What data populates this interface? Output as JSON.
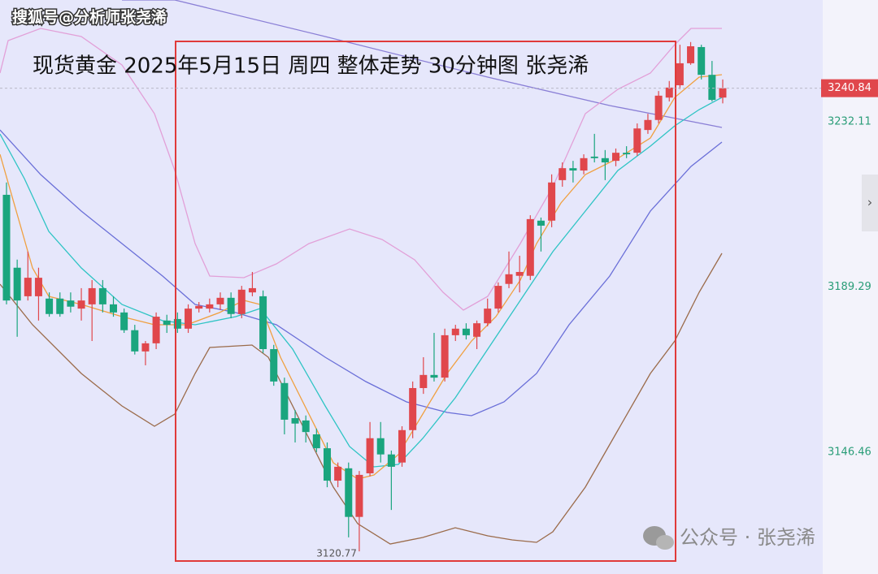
{
  "chart_data": {
    "type": "candlestick",
    "title": "现货黄金 2025年5月15日 周四 整体走势 30分钟图 张尧浠",
    "watermark": "搜狐号@分析师张尧浠",
    "footer": "公众号 · 张尧浠",
    "up_color": "#e0474c",
    "down_color": "#1aa57e",
    "ylim": [
      3114.9,
      3263.7
    ],
    "yticks": [
      3232.11,
      3189.29,
      3146.46
    ],
    "grid": false,
    "last_price": 3240.84,
    "open": [
      3213.2,
      3194.3,
      3186.9,
      3186.9,
      3186.3,
      3186.3,
      3185.8,
      3183.7,
      3184.8,
      3189.0,
      3184.8,
      3182.7,
      3178.1,
      3172.6,
      3174.7,
      3180.6,
      3181.0,
      3178.5,
      3183.7,
      3183.7,
      3184.8,
      3186.5,
      3182.3,
      3187.9,
      3186.9,
      3173.2,
      3164.4,
      3155.3,
      3154.7,
      3151.1,
      3147.5,
      3139.1,
      3142.3,
      3129.7,
      3141.0,
      3150.1,
      3145.9,
      3143.8,
      3152.2,
      3163.1,
      3166.5,
      3165.8,
      3176.8,
      3178.5,
      3176.4,
      3179.9,
      3183.7,
      3190.1,
      3192.2,
      3192.2,
      3206.5,
      3206.5,
      3217.0,
      3220.1,
      3219.5,
      3223.1,
      3222.7,
      3222.0,
      3224.1,
      3224.1,
      3230.0,
      3232.6,
      3238.4,
      3241.6,
      3247.3,
      3251.5,
      3244.3,
      3238.4
    ],
    "high": [
      3216.4,
      3196.4,
      3198.5,
      3194.3,
      3187.9,
      3187.9,
      3187.9,
      3189.0,
      3191.1,
      3191.1,
      3186.9,
      3183.7,
      3179.5,
      3175.3,
      3182.7,
      3182.1,
      3182.7,
      3184.8,
      3185.4,
      3186.3,
      3187.9,
      3187.9,
      3189.6,
      3193.2,
      3188.4,
      3174.3,
      3165.8,
      3157.4,
      3156.0,
      3152.6,
      3149.0,
      3143.8,
      3143.8,
      3141.6,
      3154.3,
      3154.3,
      3146.9,
      3153.2,
      3164.8,
      3171.1,
      3177.4,
      3178.5,
      3179.5,
      3179.9,
      3180.6,
      3186.3,
      3190.5,
      3198.5,
      3197.4,
      3207.9,
      3207.3,
      3218.5,
      3221.6,
      3222.0,
      3223.7,
      3229.0,
      3224.8,
      3225.2,
      3225.8,
      3231.7,
      3234.2,
      3240.1,
      3242.7,
      3252.1,
      3252.8,
      3252.1,
      3247.9,
      3243.1
    ],
    "low": [
      3184.8,
      3176.4,
      3185.8,
      3180.6,
      3181.6,
      3181.6,
      3182.7,
      3180.6,
      3175.3,
      3182.7,
      3181.6,
      3177.4,
      3171.8,
      3169.0,
      3173.2,
      3177.4,
      3177.4,
      3177.4,
      3182.7,
      3182.7,
      3183.3,
      3181.2,
      3181.2,
      3186.9,
      3172.2,
      3163.7,
      3151.1,
      3149.0,
      3149.0,
      3146.5,
      3137.4,
      3137.4,
      3124.4,
      3120.77,
      3140.2,
      3143.8,
      3131.5,
      3142.7,
      3150.1,
      3161.6,
      3164.8,
      3164.8,
      3175.3,
      3175.7,
      3173.2,
      3179.1,
      3182.7,
      3189.0,
      3187.9,
      3191.1,
      3198.5,
      3204.8,
      3215.3,
      3216.4,
      3218.5,
      3221.6,
      3217.0,
      3220.6,
      3222.7,
      3223.3,
      3229.0,
      3231.7,
      3237.4,
      3240.6,
      3246.9,
      3243.1,
      3237.4,
      3236.9
    ],
    "close": [
      3185.8,
      3185.8,
      3191.7,
      3191.7,
      3182.3,
      3182.3,
      3184.2,
      3185.8,
      3189.0,
      3184.8,
      3182.7,
      3178.1,
      3172.6,
      3174.7,
      3181.6,
      3179.5,
      3178.5,
      3183.7,
      3184.4,
      3184.8,
      3186.5,
      3182.3,
      3188.6,
      3189.0,
      3173.2,
      3164.8,
      3154.9,
      3153.9,
      3151.7,
      3147.5,
      3139.1,
      3142.7,
      3129.7,
      3140.6,
      3150.1,
      3145.9,
      3142.7,
      3152.2,
      3163.1,
      3166.5,
      3165.8,
      3176.8,
      3178.5,
      3176.8,
      3179.9,
      3183.7,
      3189.6,
      3192.6,
      3193.2,
      3206.9,
      3205.2,
      3216.4,
      3220.1,
      3219.5,
      3222.7,
      3222.7,
      3221.6,
      3224.1,
      3223.7,
      3230.4,
      3232.6,
      3238.9,
      3241.0,
      3247.3,
      3251.7,
      3244.3,
      3237.8,
      3240.84
    ]
  }
}
